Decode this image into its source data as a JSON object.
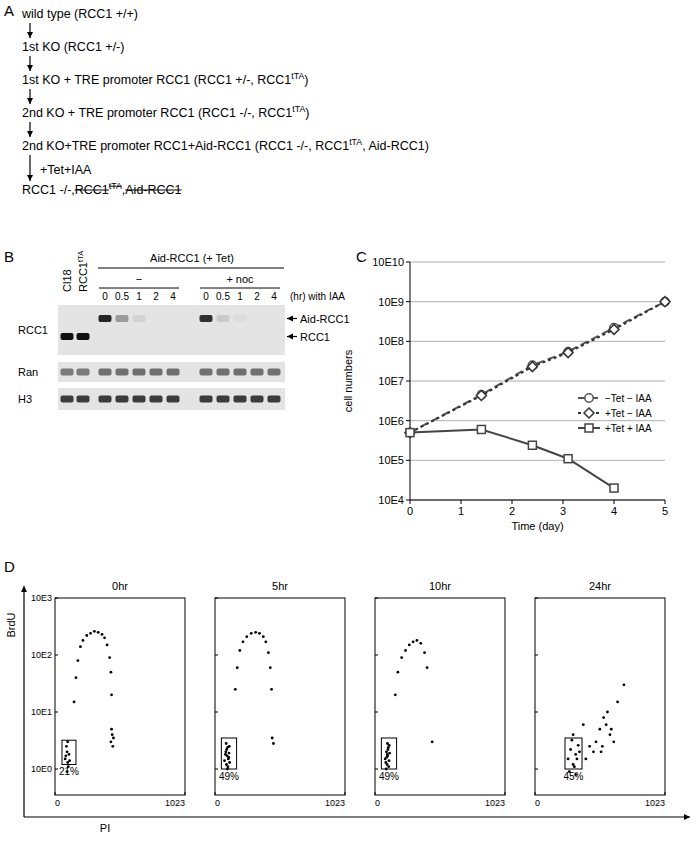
{
  "figure": {
    "labels": [
      "A",
      "B",
      "C",
      "D"
    ]
  },
  "panel_a": {
    "steps": [
      [
        {
          "text": "wild type (RCC1 +/+)"
        }
      ],
      [
        {
          "text": "1st KO (RCC1 +/-)"
        }
      ],
      [
        {
          "text": "1st KO + TRE promoter RCC1 (RCC1 +/-, RCC1"
        },
        {
          "text": "tTA",
          "style": "sup"
        },
        {
          "text": ")"
        }
      ],
      [
        {
          "text": "2nd KO + TRE promoter RCC1 (RCC1 -/-, RCC1"
        },
        {
          "text": "tTA",
          "style": "sup"
        },
        {
          "text": ")"
        }
      ],
      [
        {
          "text": "2nd KO+TRE promoter RCC1+Aid-RCC1 (RCC1 -/-, RCC1"
        },
        {
          "text": "tTA",
          "style": "sup"
        },
        {
          "text": ", Aid-RCC1)"
        }
      ],
      [
        {
          "text": "RCC1 -/-, "
        },
        {
          "text": "RCC1",
          "style": "strike"
        },
        {
          "text": "tTA",
          "style": "sup strike"
        },
        {
          "text": ", "
        },
        {
          "text": "Aid-RCC1",
          "style": "strike"
        }
      ]
    ],
    "treatment": "+Tet+IAA"
  },
  "panel_b": {
    "controls": [
      [
        {
          "text": "Cl18"
        }
      ],
      [
        {
          "text": "RCC1"
        },
        {
          "text": "tTA",
          "style": "sup"
        }
      ]
    ],
    "group": "Aid-RCC1 (+ Tet)",
    "subgroups": [
      "−",
      "+ noc"
    ],
    "time_points": [
      0,
      0.5,
      1,
      2,
      4
    ],
    "time_label": "(hr) with IAA",
    "rows": [
      {
        "name": "RCC1",
        "bands": [
          {
            "label": "Aid-RCC1",
            "position": "upper",
            "intensity": [
              0,
              0,
              0.9,
              0.35,
              0.08,
              0,
              0,
              0.85,
              0.12,
              0.04,
              0,
              0
            ]
          },
          {
            "label": "RCC1",
            "position": "lower",
            "intensity": [
              1,
              1,
              0,
              0,
              0,
              0,
              0,
              0,
              0,
              0,
              0,
              0
            ]
          }
        ]
      },
      {
        "name": "Ran",
        "bands": [
          {
            "position": "middle",
            "intensity": [
              0.5,
              0.5,
              0.55,
              0.55,
              0.55,
              0.55,
              0.55,
              0.55,
              0.55,
              0.55,
              0.55,
              0.55
            ]
          }
        ]
      },
      {
        "name": "H3",
        "bands": [
          {
            "position": "middle",
            "intensity": [
              0.8,
              0.8,
              0.8,
              0.8,
              0.8,
              0.8,
              0.8,
              0.8,
              0.8,
              0.8,
              0.8,
              0.8
            ]
          }
        ]
      }
    ]
  },
  "chart_data": [
    {
      "type": "line",
      "x_label": "Time (day)",
      "y_label": "cell numbers",
      "x": [
        0,
        1.4,
        2.4,
        3.1,
        4,
        5
      ],
      "series": [
        {
          "name": "−Tet − IAA",
          "color": "#555555",
          "marker": "circle",
          "line_style": "dashed",
          "values": [
            500000,
            4500000,
            25000000,
            55000000,
            220000000,
            1000000000
          ]
        },
        {
          "name": "+Tet − IAA",
          "color": "#333333",
          "marker": "diamond",
          "line_style": "dotted",
          "values": [
            500000,
            4300000,
            23000000,
            52000000,
            200000000,
            1000000000
          ]
        },
        {
          "name": "+Tet + IAA",
          "color": "#444444",
          "marker": "square",
          "line_style": "solid",
          "values": [
            500000,
            600000,
            240000,
            110000,
            20000,
            null
          ]
        }
      ],
      "xlim": [
        0,
        5
      ],
      "ylim": [
        10000,
        10000000000
      ],
      "xticks": [
        0,
        1,
        2,
        3,
        4,
        5
      ],
      "yticks": [
        {
          "value": 10000,
          "label": "10E4"
        },
        {
          "value": 100000,
          "label": "10E5"
        },
        {
          "value": 1000000,
          "label": "10E6"
        },
        {
          "value": 10000000,
          "label": "10E7"
        },
        {
          "value": 100000000,
          "label": "10E8"
        },
        {
          "value": 1000000000,
          "label": "10E9"
        },
        {
          "value": 10000000000,
          "label": "10E10"
        }
      ],
      "log": "y",
      "grid": true,
      "legend": "right"
    },
    {
      "type": "scatter",
      "title": "0hr",
      "x_label": "PI",
      "y_label": "BrdU",
      "color": "#000000",
      "x": [
        80,
        95,
        100,
        110,
        90,
        105,
        85,
        115,
        100,
        95,
        150,
        165,
        180,
        200,
        220,
        250,
        280,
        310,
        340,
        370,
        390,
        410,
        430,
        440,
        445,
        440,
        450,
        455,
        445,
        460
      ],
      "values": [
        1.5,
        2,
        1.3,
        1.8,
        2.5,
        1.1,
        1.7,
        1.4,
        3,
        0.9,
        15,
        40,
        80,
        140,
        180,
        220,
        240,
        260,
        250,
        230,
        200,
        150,
        90,
        50,
        20,
        3,
        4,
        2.5,
        5,
        3.5
      ],
      "xlim": [
        0,
        1023
      ],
      "ylim": [
        0.35,
        1000
      ],
      "xticks": [
        0,
        1023
      ],
      "yticks": [
        {
          "value": 1,
          "label": "10E0"
        },
        {
          "value": 10,
          "label": "10E1"
        },
        {
          "value": 100,
          "label": "10E2"
        },
        {
          "value": 1000,
          "label": "10E3"
        }
      ],
      "log": "y",
      "gate": {
        "x": [
          55,
          165
        ],
        "y": [
          1.2,
          3.2
        ],
        "percent": {
          "value": 21,
          "label": "21%"
        }
      }
    },
    {
      "type": "scatter",
      "title": "5hr",
      "color": "#000000",
      "x": [
        75,
        85,
        90,
        95,
        100,
        105,
        110,
        115,
        88,
        98,
        108,
        92,
        102,
        82,
        112,
        160,
        175,
        195,
        220,
        250,
        285,
        320,
        350,
        380,
        400,
        420,
        435,
        445,
        450,
        460
      ],
      "values": [
        1.4,
        2,
        1.2,
        1.7,
        2.4,
        1.5,
        1.9,
        1.3,
        2.8,
        1,
        1.6,
        2.2,
        1.1,
        1.8,
        2.5,
        25,
        60,
        120,
        170,
        210,
        240,
        250,
        240,
        210,
        170,
        110,
        60,
        25,
        3.5,
        2.8
      ],
      "xlim": [
        0,
        1023
      ],
      "ylim": [
        0.35,
        1000
      ],
      "xticks": [
        0,
        1023
      ],
      "yticks": [
        {
          "value": 1,
          "label": "10E0"
        },
        {
          "value": 10,
          "label": "10E1"
        },
        {
          "value": 100,
          "label": "10E2"
        },
        {
          "value": 1000,
          "label": "10E3"
        }
      ],
      "log": "y",
      "tick_labels": "x",
      "gate": {
        "x": [
          50,
          170
        ],
        "y": [
          1,
          3.5
        ],
        "percent": {
          "value": 49,
          "label": "49%"
        }
      }
    },
    {
      "type": "scatter",
      "title": "10hr",
      "color": "#000000",
      "x": [
        80,
        90,
        95,
        100,
        105,
        110,
        115,
        85,
        98,
        108,
        92,
        102,
        88,
        112,
        96,
        160,
        180,
        210,
        240,
        270,
        300,
        330,
        360,
        390,
        410,
        450
      ],
      "values": [
        1.5,
        2,
        1.2,
        1.7,
        2.4,
        1.4,
        1.9,
        1.3,
        2.8,
        1.1,
        1.6,
        2.2,
        1,
        2.6,
        1.8,
        20,
        50,
        90,
        120,
        150,
        170,
        180,
        160,
        110,
        60,
        3
      ],
      "xlim": [
        0,
        1023
      ],
      "ylim": [
        0.35,
        1000
      ],
      "xticks": [
        0,
        1023
      ],
      "yticks": [
        {
          "value": 1,
          "label": "10E0"
        },
        {
          "value": 10,
          "label": "10E1"
        },
        {
          "value": 100,
          "label": "10E2"
        },
        {
          "value": 1000,
          "label": "10E3"
        }
      ],
      "log": "y",
      "tick_labels": "x",
      "gate": {
        "x": [
          50,
          170
        ],
        "y": [
          1,
          3.5
        ],
        "percent": {
          "value": 49,
          "label": "49%"
        }
      }
    },
    {
      "type": "scatter",
      "title": "24hr",
      "color": "#000000",
      "x": [
        260,
        280,
        300,
        320,
        340,
        290,
        310,
        330,
        270,
        350,
        300,
        320,
        480,
        510,
        530,
        560,
        590,
        620,
        540,
        570,
        600,
        520,
        400,
        430,
        460,
        380,
        650,
        700
      ],
      "values": [
        1.5,
        2.2,
        1.2,
        1.8,
        2.6,
        3.2,
        1.1,
        1.5,
        0.9,
        2,
        4,
        0.8,
        3,
        5,
        2.5,
        6,
        4,
        3,
        8,
        10,
        5,
        2,
        1.5,
        2.5,
        2,
        6,
        15,
        30
      ],
      "xlim": [
        0,
        1023
      ],
      "ylim": [
        0.35,
        1000
      ],
      "xticks": [
        0,
        1023
      ],
      "yticks": [
        {
          "value": 1,
          "label": "10E0"
        },
        {
          "value": 10,
          "label": "10E1"
        },
        {
          "value": 100,
          "label": "10E2"
        },
        {
          "value": 1000,
          "label": "10E3"
        }
      ],
      "log": "y",
      "tick_labels": "x",
      "gate": {
        "x": [
          236,
          370
        ],
        "y": [
          1,
          3.5
        ],
        "percent": {
          "value": 45,
          "label": "45%"
        }
      }
    }
  ]
}
